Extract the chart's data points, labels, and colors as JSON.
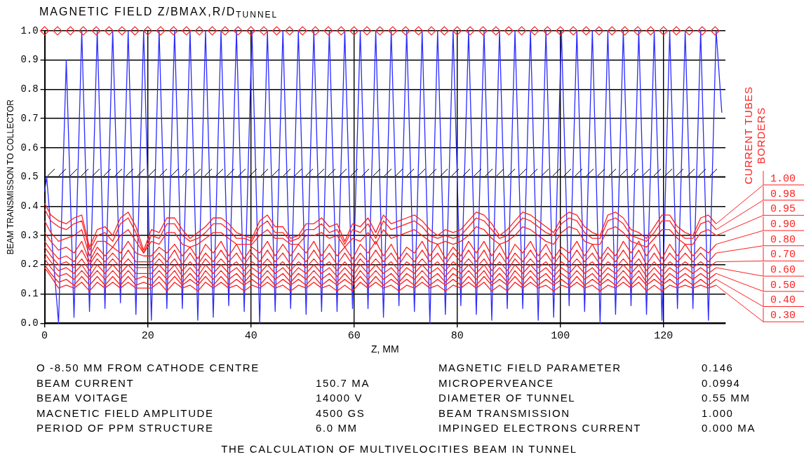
{
  "chart_data": {
    "type": "line",
    "title": "MAGNETIC FIELD  Z/BMAX,R/D$_{TUNNEL}$",
    "xlabel": "Z, MM",
    "ylabel": "BEAM TRANSMISSON TO COLLECTOR",
    "legend_title": "CURRENT TUBES BORDERS",
    "legend": "right",
    "grid": true,
    "xlim": [
      0,
      132
    ],
    "xticks": [
      0,
      20,
      40,
      60,
      80,
      100,
      120
    ],
    "ylim": [
      0,
      1
    ],
    "yticks": [
      {
        "value": 0,
        "label": "0.0"
      },
      0.1,
      0.2,
      0.3,
      0.4,
      0.5,
      0.6,
      0.7,
      0.8,
      0.9,
      {
        "value": 1,
        "label": "1.0"
      }
    ],
    "ref_lines": [
      {
        "axis": "y",
        "value": 0.5,
        "color": "#000000"
      }
    ],
    "x": [
      0,
      1.2,
      2.7,
      4.2,
      5.7,
      7.2,
      8.7,
      10.2,
      11.7,
      13.2,
      14.7,
      16.2,
      17.7,
      19.2,
      20.7,
      22.2,
      23.7,
      25.2,
      26.7,
      28.2,
      29.7,
      31.2,
      32.7,
      34.2,
      35.7,
      37.2,
      38.7,
      40.2,
      41.7,
      43.2,
      44.7,
      46.2,
      47.7,
      49.2,
      50.7,
      52.2,
      53.7,
      55.2,
      56.7,
      58.2,
      59.7,
      61.2,
      62.7,
      64.2,
      65.7,
      67.2,
      68.7,
      70.2,
      71.7,
      73.2,
      74.7,
      76.2,
      77.7,
      79.2,
      80.7,
      82.2,
      83.7,
      85.2,
      86.7,
      88.2,
      89.7,
      91.2,
      92.7,
      94.2,
      95.7,
      97.2,
      98.7,
      100.2,
      101.7,
      103.2,
      104.7,
      106.2,
      107.7,
      109.2,
      110.7,
      112.2,
      113.7,
      115.2,
      116.7,
      118.2,
      119.7,
      121.2,
      122.7,
      124.2,
      125.7,
      127.2,
      128.7,
      130.2
    ],
    "series": [
      {
        "color": "#2b2bff",
        "x": [
          0,
          0.4,
          2.7,
          4.2,
          5.7,
          7.2,
          8.7,
          10.2,
          11.7,
          13.2,
          14.7,
          16.2,
          17.7,
          19.2,
          20.7,
          22.2,
          23.7,
          25.2,
          26.7,
          28.2,
          29.7,
          31.2,
          32.7,
          34.2,
          35.7,
          37.2,
          38.7,
          40.2,
          41.7,
          43.2,
          44.7,
          46.2,
          47.7,
          49.2,
          50.7,
          52.2,
          53.7,
          55.2,
          56.7,
          58.2,
          59.7,
          61.2,
          62.7,
          64.2,
          65.7,
          67.2,
          68.7,
          70.2,
          71.7,
          73.2,
          74.7,
          76.2,
          77.7,
          79.2,
          80.7,
          82.2,
          83.7,
          85.2,
          86.7,
          88.2,
          89.7,
          91.2,
          92.7,
          94.2,
          95.7,
          97.2,
          98.7,
          100.2,
          101.7,
          103.2,
          104.7,
          106.2,
          107.7,
          109.2,
          110.7,
          112.2,
          113.7,
          115.2,
          116.7,
          118.2,
          119.7,
          121.2,
          122.7,
          124.2,
          125.7,
          127.2,
          128.7,
          130.2,
          131.3
        ],
        "values": [
          0.45,
          0.5,
          0.0,
          0.9,
          0.02,
          1,
          0.04,
          1,
          0.05,
          1,
          0.07,
          1,
          0.03,
          1,
          0.01,
          1,
          0.05,
          1,
          0.05,
          1,
          0.01,
          1,
          0.02,
          1,
          0.06,
          1,
          0.04,
          1,
          0.0,
          1,
          0.04,
          1,
          0.05,
          1,
          0.03,
          1,
          0.04,
          1,
          0.04,
          1,
          0.05,
          1,
          0.05,
          1,
          0.02,
          1,
          0.06,
          1,
          0.04,
          1,
          0.0,
          1,
          0.03,
          1,
          0.06,
          1,
          0.03,
          1,
          0.01,
          1,
          0.05,
          1,
          0.05,
          1,
          0.01,
          1,
          0.02,
          1,
          0.06,
          1,
          0.04,
          1,
          0.0,
          1,
          0.03,
          1,
          0.06,
          1,
          0.03,
          1,
          0.01,
          1,
          0.05,
          1,
          0.05,
          1,
          0.01,
          1,
          0.72
        ]
      },
      {
        "type": "scatter",
        "marker": "diamond",
        "color": "#ff2020",
        "x": [
          0,
          2.5,
          5,
          7.5,
          10,
          12.5,
          15,
          17.5,
          20,
          22.5,
          25,
          27.5,
          30,
          32.5,
          35,
          37.5,
          40,
          42.5,
          45,
          47.5,
          50,
          52.5,
          55,
          57.5,
          60,
          62.5,
          65,
          67.5,
          70,
          72.5,
          75,
          77.5,
          80,
          82.5,
          85,
          87.5,
          90,
          92.5,
          95,
          97.5,
          100,
          102.5,
          105,
          107.5,
          110,
          112.5,
          115,
          117.5,
          120,
          122.5,
          125,
          127.5,
          130
        ],
        "values": [
          1,
          1,
          1,
          1,
          1,
          1,
          1,
          1,
          1,
          1,
          1,
          1,
          1,
          1,
          1,
          1,
          1,
          1,
          1,
          1,
          1,
          1,
          1,
          1,
          1,
          1,
          1,
          1,
          1,
          1,
          1,
          1,
          1,
          1,
          1,
          1,
          1,
          1,
          1,
          1,
          1,
          1,
          1,
          1,
          1,
          1,
          1,
          1,
          1,
          1,
          1,
          1,
          1
        ]
      },
      {
        "name": "1.00",
        "color": "#ff2020",
        "values": [
          0.41,
          0.37,
          0.35,
          0.34,
          0.36,
          0.37,
          0.26,
          0.32,
          0.33,
          0.3,
          0.36,
          0.38,
          0.33,
          0.25,
          0.32,
          0.31,
          0.36,
          0.36,
          0.32,
          0.29,
          0.31,
          0.33,
          0.36,
          0.36,
          0.34,
          0.31,
          0.3,
          0.29,
          0.35,
          0.37,
          0.33,
          0.33,
          0.29,
          0.3,
          0.34,
          0.34,
          0.36,
          0.33,
          0.34,
          0.28,
          0.34,
          0.33,
          0.36,
          0.31,
          0.37,
          0.34,
          0.35,
          0.36,
          0.37,
          0.35,
          0.32,
          0.3,
          0.32,
          0.31,
          0.32,
          0.35,
          0.38,
          0.37,
          0.34,
          0.3,
          0.32,
          0.35,
          0.38,
          0.37,
          0.35,
          0.33,
          0.31,
          0.36,
          0.38,
          0.37,
          0.33,
          0.31,
          0.3,
          0.37,
          0.38,
          0.36,
          0.32,
          0.31,
          0.29,
          0.33,
          0.37,
          0.37,
          0.33,
          0.31,
          0.3,
          0.36,
          0.37,
          0.34
        ]
      },
      {
        "name": "0.98",
        "color": "#ff2020",
        "values": [
          0.39,
          0.35,
          0.33,
          0.32,
          0.34,
          0.35,
          0.25,
          0.3,
          0.31,
          0.28,
          0.34,
          0.36,
          0.31,
          0.24,
          0.3,
          0.29,
          0.34,
          0.34,
          0.3,
          0.28,
          0.29,
          0.31,
          0.34,
          0.34,
          0.32,
          0.29,
          0.29,
          0.28,
          0.33,
          0.35,
          0.31,
          0.31,
          0.28,
          0.29,
          0.32,
          0.32,
          0.34,
          0.31,
          0.32,
          0.27,
          0.32,
          0.31,
          0.34,
          0.29,
          0.35,
          0.32,
          0.33,
          0.34,
          0.35,
          0.33,
          0.3,
          0.29,
          0.3,
          0.29,
          0.3,
          0.33,
          0.36,
          0.35,
          0.32,
          0.29,
          0.3,
          0.33,
          0.36,
          0.35,
          0.33,
          0.31,
          0.3,
          0.34,
          0.36,
          0.35,
          0.31,
          0.29,
          0.29,
          0.35,
          0.36,
          0.34,
          0.3,
          0.29,
          0.28,
          0.31,
          0.35,
          0.35,
          0.31,
          0.29,
          0.29,
          0.34,
          0.35,
          0.32
        ]
      },
      {
        "name": "0.95",
        "color": "#ff2020",
        "values": [
          0.35,
          0.31,
          0.28,
          0.29,
          0.3,
          0.32,
          0.23,
          0.28,
          0.28,
          0.26,
          0.3,
          0.32,
          0.28,
          0.24,
          0.28,
          0.27,
          0.31,
          0.31,
          0.27,
          0.26,
          0.27,
          0.29,
          0.31,
          0.31,
          0.29,
          0.27,
          0.27,
          0.27,
          0.3,
          0.32,
          0.29,
          0.29,
          0.27,
          0.27,
          0.3,
          0.3,
          0.31,
          0.29,
          0.3,
          0.26,
          0.29,
          0.28,
          0.31,
          0.27,
          0.32,
          0.29,
          0.3,
          0.31,
          0.32,
          0.3,
          0.28,
          0.27,
          0.28,
          0.27,
          0.28,
          0.3,
          0.33,
          0.32,
          0.29,
          0.27,
          0.28,
          0.3,
          0.33,
          0.32,
          0.3,
          0.28,
          0.27,
          0.31,
          0.33,
          0.32,
          0.28,
          0.27,
          0.27,
          0.32,
          0.33,
          0.31,
          0.28,
          0.27,
          0.26,
          0.29,
          0.32,
          0.32,
          0.29,
          0.27,
          0.27,
          0.31,
          0.32,
          0.3
        ]
      },
      {
        "name": "0.90",
        "color": "#ff2020",
        "values": [
          0.31,
          0.28,
          0.25,
          0.26,
          0.24,
          0.28,
          0.21,
          0.26,
          0.23,
          0.26,
          0.24,
          0.28,
          0.24,
          0.23,
          0.23,
          0.26,
          0.24,
          0.27,
          0.23,
          0.26,
          0.22,
          0.27,
          0.24,
          0.28,
          0.23,
          0.27,
          0.22,
          0.26,
          0.24,
          0.28,
          0.23,
          0.27,
          0.23,
          0.27,
          0.24,
          0.28,
          0.23,
          0.27,
          0.23,
          0.26,
          0.22,
          0.27,
          0.24,
          0.28,
          0.23,
          0.27,
          0.22,
          0.26,
          0.24,
          0.28,
          0.23,
          0.27,
          0.22,
          0.26,
          0.23,
          0.28,
          0.24,
          0.28,
          0.23,
          0.27,
          0.22,
          0.27,
          0.24,
          0.28,
          0.23,
          0.27,
          0.22,
          0.26,
          0.24,
          0.28,
          0.23,
          0.27,
          0.22,
          0.26,
          0.23,
          0.28,
          0.24,
          0.28,
          0.23,
          0.27,
          0.22,
          0.27,
          0.23,
          0.27,
          0.23,
          0.26,
          0.24,
          0.27
        ]
      },
      {
        "name": "0.80",
        "color": "#ff2020",
        "values": [
          0.28,
          0.25,
          0.22,
          0.23,
          0.21,
          0.25,
          0.2,
          0.24,
          0.21,
          0.24,
          0.21,
          0.25,
          0.21,
          0.21,
          0.21,
          0.24,
          0.21,
          0.25,
          0.2,
          0.24,
          0.2,
          0.24,
          0.21,
          0.25,
          0.21,
          0.24,
          0.2,
          0.24,
          0.21,
          0.25,
          0.21,
          0.24,
          0.2,
          0.24,
          0.21,
          0.25,
          0.21,
          0.24,
          0.2,
          0.24,
          0.2,
          0.24,
          0.21,
          0.25,
          0.21,
          0.24,
          0.2,
          0.24,
          0.21,
          0.25,
          0.21,
          0.24,
          0.2,
          0.24,
          0.21,
          0.25,
          0.21,
          0.25,
          0.2,
          0.24,
          0.2,
          0.24,
          0.21,
          0.25,
          0.21,
          0.24,
          0.2,
          0.24,
          0.21,
          0.25,
          0.21,
          0.24,
          0.2,
          0.24,
          0.21,
          0.25,
          0.21,
          0.25,
          0.2,
          0.24,
          0.2,
          0.24,
          0.21,
          0.24,
          0.21,
          0.24,
          0.21,
          0.24
        ]
      },
      {
        "name": "0.70",
        "color": "#ff2020",
        "values": [
          0.26,
          0.23,
          0.2,
          0.21,
          0.19,
          0.22,
          0.18,
          0.22,
          0.19,
          0.22,
          0.19,
          0.22,
          0.19,
          0.19,
          0.19,
          0.22,
          0.19,
          0.22,
          0.18,
          0.21,
          0.18,
          0.22,
          0.19,
          0.22,
          0.19,
          0.21,
          0.18,
          0.21,
          0.19,
          0.22,
          0.19,
          0.21,
          0.18,
          0.21,
          0.19,
          0.22,
          0.19,
          0.21,
          0.18,
          0.21,
          0.18,
          0.22,
          0.19,
          0.22,
          0.19,
          0.21,
          0.18,
          0.21,
          0.19,
          0.22,
          0.19,
          0.21,
          0.18,
          0.21,
          0.19,
          0.22,
          0.19,
          0.22,
          0.18,
          0.21,
          0.18,
          0.22,
          0.19,
          0.22,
          0.19,
          0.21,
          0.18,
          0.21,
          0.19,
          0.22,
          0.19,
          0.21,
          0.18,
          0.21,
          0.19,
          0.22,
          0.19,
          0.22,
          0.18,
          0.21,
          0.18,
          0.21,
          0.19,
          0.21,
          0.19,
          0.21,
          0.19,
          0.21
        ]
      },
      {
        "name": "0.60",
        "color": "#ff2020",
        "values": [
          0.24,
          0.21,
          0.18,
          0.19,
          0.17,
          0.2,
          0.16,
          0.2,
          0.17,
          0.2,
          0.17,
          0.2,
          0.17,
          0.17,
          0.17,
          0.2,
          0.17,
          0.2,
          0.16,
          0.19,
          0.16,
          0.2,
          0.17,
          0.2,
          0.17,
          0.19,
          0.16,
          0.19,
          0.17,
          0.2,
          0.17,
          0.19,
          0.16,
          0.19,
          0.17,
          0.2,
          0.17,
          0.19,
          0.16,
          0.19,
          0.16,
          0.2,
          0.17,
          0.2,
          0.17,
          0.19,
          0.16,
          0.19,
          0.17,
          0.2,
          0.17,
          0.19,
          0.16,
          0.19,
          0.17,
          0.2,
          0.17,
          0.2,
          0.16,
          0.19,
          0.16,
          0.2,
          0.17,
          0.2,
          0.17,
          0.19,
          0.16,
          0.19,
          0.17,
          0.2,
          0.17,
          0.19,
          0.16,
          0.19,
          0.17,
          0.2,
          0.17,
          0.2,
          0.16,
          0.19,
          0.16,
          0.19,
          0.17,
          0.19,
          0.17,
          0.19,
          0.17,
          0.19
        ]
      },
      {
        "name": "0.50",
        "color": "#ff2020",
        "values": [
          0.22,
          0.19,
          0.16,
          0.17,
          0.15,
          0.18,
          0.15,
          0.18,
          0.15,
          0.18,
          0.15,
          0.18,
          0.15,
          0.16,
          0.15,
          0.18,
          0.15,
          0.18,
          0.14,
          0.17,
          0.14,
          0.18,
          0.15,
          0.18,
          0.15,
          0.17,
          0.14,
          0.17,
          0.15,
          0.18,
          0.15,
          0.17,
          0.14,
          0.17,
          0.15,
          0.18,
          0.15,
          0.17,
          0.14,
          0.17,
          0.14,
          0.18,
          0.15,
          0.18,
          0.15,
          0.17,
          0.14,
          0.17,
          0.15,
          0.18,
          0.15,
          0.17,
          0.14,
          0.17,
          0.15,
          0.18,
          0.15,
          0.18,
          0.14,
          0.17,
          0.14,
          0.18,
          0.15,
          0.18,
          0.15,
          0.17,
          0.14,
          0.17,
          0.15,
          0.18,
          0.15,
          0.17,
          0.14,
          0.17,
          0.15,
          0.18,
          0.15,
          0.18,
          0.14,
          0.17,
          0.14,
          0.17,
          0.15,
          0.17,
          0.15,
          0.17,
          0.15,
          0.17
        ]
      },
      {
        "name": "0.40",
        "color": "#ff2020",
        "values": [
          0.2,
          0.17,
          0.14,
          0.15,
          0.13,
          0.16,
          0.13,
          0.16,
          0.13,
          0.16,
          0.13,
          0.16,
          0.13,
          0.14,
          0.13,
          0.16,
          0.13,
          0.16,
          0.13,
          0.15,
          0.13,
          0.16,
          0.13,
          0.16,
          0.13,
          0.15,
          0.13,
          0.15,
          0.13,
          0.16,
          0.13,
          0.15,
          0.13,
          0.15,
          0.13,
          0.16,
          0.13,
          0.15,
          0.13,
          0.15,
          0.13,
          0.16,
          0.13,
          0.16,
          0.13,
          0.15,
          0.13,
          0.15,
          0.13,
          0.16,
          0.13,
          0.15,
          0.13,
          0.15,
          0.13,
          0.16,
          0.13,
          0.16,
          0.13,
          0.15,
          0.13,
          0.16,
          0.13,
          0.16,
          0.13,
          0.15,
          0.13,
          0.15,
          0.13,
          0.16,
          0.13,
          0.15,
          0.13,
          0.15,
          0.13,
          0.16,
          0.13,
          0.16,
          0.13,
          0.15,
          0.13,
          0.15,
          0.13,
          0.15,
          0.13,
          0.15,
          0.13,
          0.15
        ]
      },
      {
        "name": "0.30",
        "color": "#ff2020",
        "values": [
          0.19,
          0.16,
          0.12,
          0.13,
          0.12,
          0.14,
          0.11,
          0.14,
          0.12,
          0.14,
          0.12,
          0.14,
          0.12,
          0.12,
          0.12,
          0.14,
          0.11,
          0.14,
          0.12,
          0.13,
          0.11,
          0.14,
          0.12,
          0.14,
          0.12,
          0.13,
          0.11,
          0.13,
          0.12,
          0.14,
          0.12,
          0.13,
          0.11,
          0.13,
          0.12,
          0.14,
          0.12,
          0.13,
          0.11,
          0.13,
          0.11,
          0.14,
          0.12,
          0.14,
          0.12,
          0.13,
          0.11,
          0.13,
          0.12,
          0.14,
          0.12,
          0.13,
          0.11,
          0.13,
          0.12,
          0.14,
          0.12,
          0.14,
          0.11,
          0.13,
          0.11,
          0.14,
          0.12,
          0.14,
          0.12,
          0.13,
          0.11,
          0.13,
          0.12,
          0.14,
          0.12,
          0.13,
          0.11,
          0.13,
          0.12,
          0.14,
          0.12,
          0.14,
          0.11,
          0.13,
          0.11,
          0.13,
          0.12,
          0.13,
          0.12,
          0.13,
          0.12,
          0.13
        ]
      }
    ],
    "annotations": [
      "O -8.50 MM FROM CATHODE CENTRE",
      "MAGNETIC FIELD PARAMETER",
      "0.146",
      "BEAM CURRENT",
      "150.7 MA",
      "MICROPERVEANCE",
      "0.0994",
      "BEAM VOITAGE",
      "14000 V",
      "DIAMETER OF TUNNEL",
      "0.55 MM",
      "MACNETIC FIELD AMPLITUDE",
      "4500 GS",
      "BEAM TRANSMISSION",
      "1.000",
      "PERIOD OF PPM STRUCTURE",
      "6.0 MM",
      "IMPINGED ELECTRONS CURRENT",
      "0.000 MA",
      "THE CALCULATION OF MULTIVELOCITIES BEAM IN TUNNEL"
    ]
  }
}
